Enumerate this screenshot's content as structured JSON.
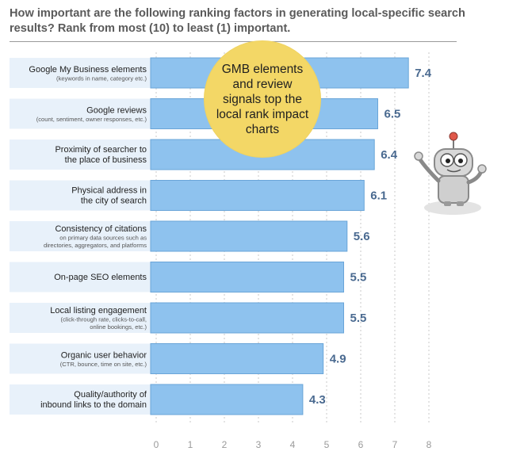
{
  "chart_data": {
    "type": "bar",
    "orientation": "horizontal",
    "title": "How important are the following ranking factors in generating local-specific search results? Rank from most (10) to least (1) important.",
    "categories": [
      {
        "label": "Google My Business elements",
        "sublabel": "(keywords in name, category etc.)"
      },
      {
        "label": "Google reviews",
        "sublabel": "(count, sentiment, owner responses, etc.)"
      },
      {
        "label": "Proximity of searcher to\nthe place of business",
        "sublabel": ""
      },
      {
        "label": "Physical address in\nthe city of search",
        "sublabel": ""
      },
      {
        "label": "Consistency of citations",
        "sublabel": "on primary data sources such as\ndirectories, aggregators, and platforms"
      },
      {
        "label": "On-page SEO elements",
        "sublabel": ""
      },
      {
        "label": "Local listing engagement",
        "sublabel": "(click-through rate, clicks-to-call,\nonline bookings, etc.)"
      },
      {
        "label": "Organic user behavior",
        "sublabel": "(CTR, bounce, time on site, etc.)"
      },
      {
        "label": "Quality/authority of\ninbound links to the domain",
        "sublabel": ""
      }
    ],
    "values": [
      7.4,
      6.5,
      6.4,
      6.1,
      5.6,
      5.5,
      5.5,
      4.9,
      4.3
    ],
    "value_labels": [
      "7.4",
      "6.5",
      "6.4",
      "6.1",
      "5.6",
      "5.5",
      "5.5",
      "4.9",
      "4.3"
    ],
    "xlim": [
      0,
      8
    ],
    "ticks": [
      "0",
      "1",
      "2",
      "3",
      "4",
      "5",
      "6",
      "7",
      "8"
    ],
    "grid": true,
    "colors": {
      "bar": "#8ec2ee",
      "bar_edge": "#6aa5d8",
      "label_bg": "#e8f1fa",
      "value": "#4a6a90",
      "grid": "#c8c8c8"
    }
  },
  "callout": {
    "text": "GMB elements and review signals top the local rank impact charts",
    "color": "#f3d766"
  },
  "mascot": {
    "icon": "robot-mascot-icon"
  }
}
